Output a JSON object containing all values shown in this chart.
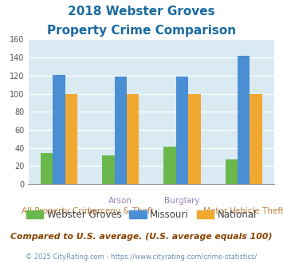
{
  "title_line1": "2018 Webster Groves",
  "title_line2": "Property Crime Comparison",
  "webster_groves": [
    34,
    32,
    41,
    27
  ],
  "missouri": [
    121,
    119,
    119,
    142
  ],
  "national": [
    100,
    100,
    100,
    100
  ],
  "bar_colors": {
    "webster_groves": "#6ab84c",
    "missouri": "#4a8fd4",
    "national": "#f0a830"
  },
  "ylim": [
    0,
    160
  ],
  "yticks": [
    0,
    20,
    40,
    60,
    80,
    100,
    120,
    140,
    160
  ],
  "background_color": "#daeaf2",
  "title_color": "#1a6aa0",
  "label_color_top": "#9b7fb6",
  "label_color_bottom": "#c08040",
  "footer_text": "Compared to U.S. average. (U.S. average equals 100)",
  "copyright_text": "© 2025 CityRating.com - https://www.cityrating.com/crime-statistics/",
  "legend_labels": [
    "Webster Groves",
    "Missouri",
    "National"
  ],
  "legend_text_color": "#444444",
  "copyright_color": "#7090b0"
}
